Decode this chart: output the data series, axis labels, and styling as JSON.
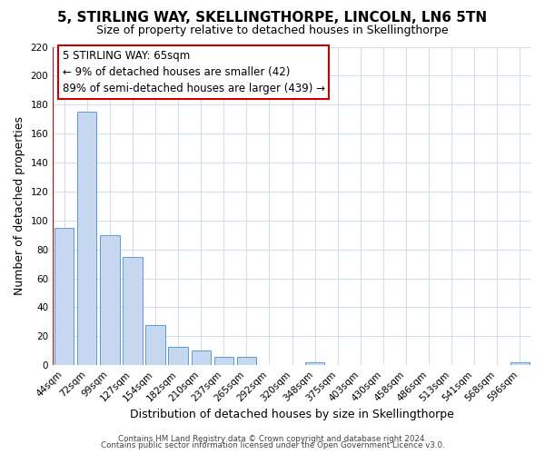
{
  "title": "5, STIRLING WAY, SKELLINGTHORPE, LINCOLN, LN6 5TN",
  "subtitle": "Size of property relative to detached houses in Skellingthorpe",
  "xlabel": "Distribution of detached houses by size in Skellingthorpe",
  "ylabel": "Number of detached properties",
  "footer_line1": "Contains HM Land Registry data © Crown copyright and database right 2024.",
  "footer_line2": "Contains public sector information licensed under the Open Government Licence v3.0.",
  "bar_labels": [
    "44sqm",
    "72sqm",
    "99sqm",
    "127sqm",
    "154sqm",
    "182sqm",
    "210sqm",
    "237sqm",
    "265sqm",
    "292sqm",
    "320sqm",
    "348sqm",
    "375sqm",
    "403sqm",
    "430sqm",
    "458sqm",
    "486sqm",
    "513sqm",
    "541sqm",
    "568sqm",
    "596sqm"
  ],
  "bar_values": [
    95,
    175,
    90,
    75,
    28,
    13,
    10,
    6,
    6,
    0,
    0,
    2,
    0,
    0,
    0,
    0,
    0,
    0,
    0,
    0,
    2
  ],
  "bar_color": "#c5d8ef",
  "bar_edge_color": "#5b9bd5",
  "highlight_line_color": "#cc0000",
  "annotation_box_edge_color": "#cc0000",
  "ylim": [
    0,
    220
  ],
  "yticks": [
    0,
    20,
    40,
    60,
    80,
    100,
    120,
    140,
    160,
    180,
    200,
    220
  ],
  "annotation_title": "5 STIRLING WAY: 65sqm",
  "annotation_line1": "← 9% of detached houses are smaller (42)",
  "annotation_line2": "89% of semi-detached houses are larger (439) →",
  "grid_color": "#d0dce8",
  "background_color": "#ffffff",
  "title_fontsize": 11,
  "subtitle_fontsize": 9,
  "axis_label_fontsize": 9,
  "tick_fontsize": 7.5,
  "annotation_fontsize": 8.5
}
